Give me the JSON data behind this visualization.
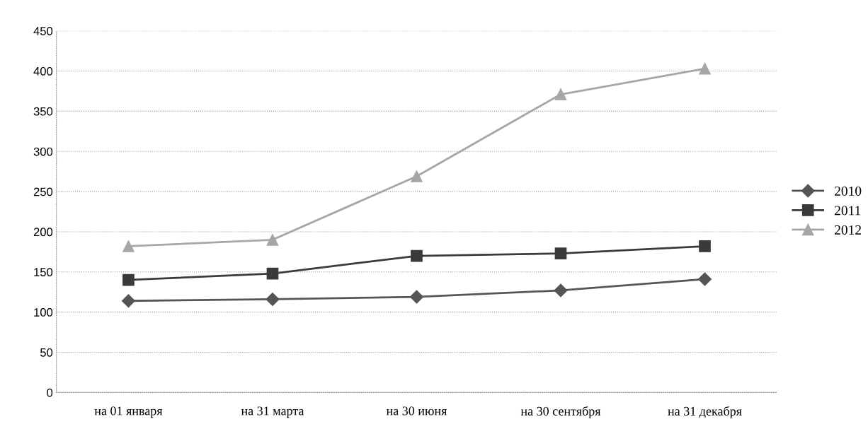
{
  "chart_data": {
    "type": "line",
    "categories": [
      "на 01 января",
      "на 31 марта",
      "на 30 июня",
      "на 30 сентября",
      "на 31 декабря"
    ],
    "series": [
      {
        "name": "2010",
        "color": "#555555",
        "marker": "diamond",
        "values": [
          114,
          116,
          119,
          127,
          141
        ]
      },
      {
        "name": "2011",
        "color": "#3a3a3a",
        "marker": "square",
        "values": [
          140,
          148,
          170,
          173,
          182
        ]
      },
      {
        "name": "2012",
        "color": "#a6a6a6",
        "marker": "triangle",
        "values": [
          182,
          190,
          269,
          371,
          403
        ]
      }
    ],
    "ylim": [
      0,
      450
    ],
    "yticks": [
      0,
      50,
      100,
      150,
      200,
      250,
      300,
      350,
      400,
      450
    ],
    "grid": "y",
    "legend": "right",
    "line_style": "solid"
  }
}
